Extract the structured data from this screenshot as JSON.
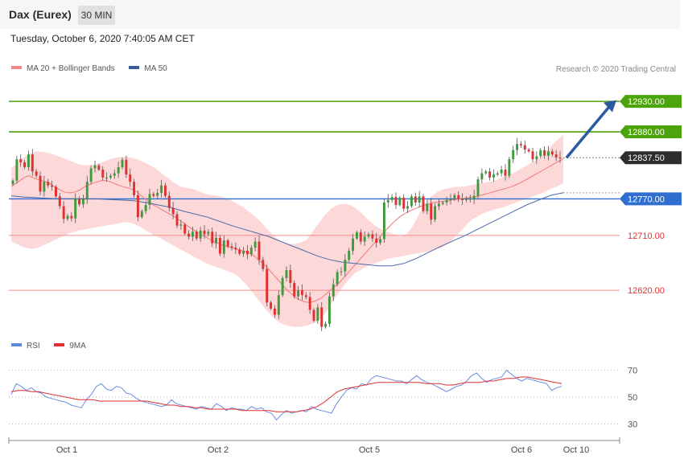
{
  "header": {
    "instrument": "Dax (Eurex)",
    "timeframe": "30 MIN"
  },
  "timestamp": "Tuesday, October 6, 2020 7:40:05 AM CET",
  "legend": {
    "ma20_label": "MA 20 + Bollinger Bands",
    "ma50_label": "MA 50",
    "rsi_label": "RSI",
    "ma9_label": "9MA"
  },
  "credit": "Research © 2020 Trading Central",
  "colors": {
    "resistance": "#4ca40c",
    "support": "#f08a8a",
    "pivot": "#2f6fd0",
    "bullish": "#3d9a3d",
    "bearish": "#e03030",
    "bollinger": "#fdd8d8",
    "ma50": "#4a6aa8",
    "rsi": "#6a8be0",
    "rsi_ma": "#e03030",
    "arrow": "#2c5aa0"
  },
  "chart_data": [
    {
      "type": "candlestick",
      "title": "",
      "ylim": [
        12545,
        12975
      ],
      "x_tick_labels": [
        "Oct 1",
        "Oct 2",
        "Oct 5",
        "Oct 6",
        "Oct 10"
      ],
      "levels": [
        {
          "label": "12930.00",
          "value": 12930,
          "kind": "resistance"
        },
        {
          "label": "12880.00",
          "value": 12880,
          "kind": "resistance"
        },
        {
          "label": "12837.50",
          "value": 12837.5,
          "kind": "last"
        },
        {
          "label": "12770.00",
          "value": 12770,
          "kind": "pivot"
        },
        {
          "label": "12710.00",
          "value": 12710,
          "kind": "support"
        },
        {
          "label": "12620.00",
          "value": 12620,
          "kind": "support"
        }
      ],
      "close": [
        12800,
        12835,
        12830,
        12822,
        12843,
        12815,
        12808,
        12782,
        12798,
        12792,
        12790,
        12774,
        12758,
        12737,
        12742,
        12738,
        12770,
        12761,
        12770,
        12798,
        12820,
        12825,
        12818,
        12805,
        12805,
        12808,
        12812,
        12822,
        12834,
        12810,
        12798,
        12776,
        12740,
        12750,
        12760,
        12778,
        12775,
        12780,
        12792,
        12775,
        12755,
        12745,
        12726,
        12728,
        12713,
        12708,
        12716,
        12705,
        12718,
        12712,
        12716,
        12697,
        12706,
        12680,
        12702,
        12692,
        12690,
        12687,
        12680,
        12685,
        12679,
        12690,
        12700,
        12670,
        12655,
        12600,
        12590,
        12580,
        12612,
        12640,
        12653,
        12632,
        12610,
        12620,
        12612,
        12609,
        12588,
        12570,
        12592,
        12560,
        12565,
        12610,
        12630,
        12650,
        12651,
        12670,
        12685,
        12705,
        12715,
        12700,
        12708,
        12712,
        12705,
        12698,
        12704,
        12764,
        12768,
        12773,
        12760,
        12772,
        12754,
        12758,
        12774,
        12764,
        12774,
        12750,
        12762,
        12736,
        12758,
        12762,
        12764,
        12768,
        12770,
        12776,
        12770,
        12768,
        12770,
        12770,
        12775,
        12802,
        12812,
        12815,
        12805,
        12810,
        12812,
        12818,
        12808,
        12835,
        12850,
        12860,
        12858,
        12851,
        12848,
        12835,
        12840,
        12850,
        12841,
        12848,
        12843,
        12838,
        12837.5
      ],
      "ma20": [
        12790,
        12795,
        12800,
        12805,
        12808,
        12805,
        12802,
        12800,
        12798,
        12795,
        12790,
        12786,
        12782,
        12780,
        12780,
        12782,
        12785,
        12790,
        12793,
        12796,
        12798,
        12800,
        12800,
        12798,
        12795,
        12792,
        12790,
        12788,
        12786,
        12782,
        12776,
        12770,
        12764,
        12760,
        12756,
        12752,
        12748,
        12744,
        12740,
        12735,
        12730,
        12725,
        12720,
        12716,
        12712,
        12708,
        12704,
        12700,
        12697,
        12694,
        12692,
        12690,
        12688,
        12686,
        12684,
        12682,
        12678,
        12672,
        12666,
        12660,
        12652,
        12644,
        12636,
        12628,
        12620,
        12614,
        12608,
        12604,
        12601,
        12600,
        12601,
        12604,
        12608,
        12614,
        12620,
        12626,
        12632,
        12640,
        12648,
        12656,
        12664,
        12672,
        12680,
        12688,
        12696,
        12704,
        12712,
        12720,
        12727,
        12734,
        12740,
        12745,
        12749,
        12752,
        12755,
        12758,
        12760,
        12762,
        12764,
        12765,
        12766,
        12767,
        12768,
        12769,
        12770,
        12771,
        12772,
        12773,
        12774,
        12776,
        12778,
        12780,
        12782,
        12784,
        12786,
        12788,
        12790,
        12793,
        12796,
        12800,
        12804,
        12808,
        12812,
        12816,
        12820,
        12824,
        12828,
        12832,
        12836
      ],
      "bb_upper": [
        12820,
        12830,
        12838,
        12844,
        12848,
        12847,
        12845,
        12842,
        12838,
        12834,
        12830,
        12826,
        12825,
        12826,
        12828,
        12832,
        12836,
        12838,
        12839,
        12838,
        12835,
        12831,
        12826,
        12820,
        12812,
        12804,
        12796,
        12790,
        12788,
        12786,
        12782,
        12778,
        12776,
        12775,
        12772,
        12768,
        12762,
        12756,
        12748,
        12740,
        12730,
        12718,
        12708,
        12700,
        12696,
        12696,
        12698,
        12702,
        12716,
        12730,
        12744,
        12754,
        12760,
        12762,
        12760,
        12754,
        12745,
        12735,
        12726,
        12720,
        12716,
        12712,
        12708,
        12712,
        12725,
        12745,
        12762,
        12774,
        12782,
        12786,
        12788,
        12790,
        12790,
        12792,
        12794,
        12796,
        12798,
        12800,
        12804,
        12808,
        12812,
        12818,
        12824,
        12830,
        12836,
        12846,
        12856,
        12866,
        12876
      ],
      "bb_lower": [
        12700,
        12695,
        12690,
        12688,
        12690,
        12695,
        12700,
        12705,
        12710,
        12715,
        12718,
        12720,
        12722,
        12724,
        12726,
        12728,
        12730,
        12732,
        12730,
        12725,
        12718,
        12712,
        12706,
        12700,
        12694,
        12688,
        12682,
        12676,
        12670,
        12664,
        12660,
        12656,
        12652,
        12648,
        12640,
        12628,
        12614,
        12600,
        12586,
        12574,
        12566,
        12562,
        12560,
        12560,
        12562,
        12566,
        12574,
        12588,
        12606,
        12622,
        12636,
        12648,
        12654,
        12660,
        12664,
        12668,
        12672,
        12674,
        12676,
        12678,
        12680,
        12682,
        12684,
        12688,
        12690,
        12698,
        12708,
        12720,
        12732,
        12740,
        12746,
        12750,
        12753,
        12756,
        12760,
        12764,
        12768,
        12772,
        12776,
        12780,
        12786,
        12790,
        12796
      ],
      "ma50": [
        12775,
        12773,
        12772,
        12771,
        12770,
        12770,
        12770,
        12770,
        12769,
        12768,
        12767,
        12764,
        12760,
        12756,
        12750,
        12745,
        12740,
        12733,
        12726,
        12720,
        12714,
        12708,
        12700,
        12692,
        12684,
        12676,
        12670,
        12666,
        12664,
        12662,
        12660,
        12660,
        12664,
        12672,
        12682,
        12692,
        12701,
        12710,
        12720,
        12730,
        12740,
        12750,
        12760,
        12768,
        12776,
        12780
      ]
    },
    {
      "type": "line",
      "title": "",
      "ylim": [
        20,
        80
      ],
      "y_ticks": [
        70,
        50,
        30
      ],
      "series": [
        {
          "name": "RSI",
          "values": [
            52,
            60,
            58,
            55,
            57,
            54,
            53,
            50,
            49,
            48,
            47,
            46,
            44,
            43,
            42,
            48,
            52,
            58,
            60,
            56,
            55,
            58,
            57,
            53,
            52,
            49,
            47,
            46,
            45,
            44,
            43,
            44,
            48,
            45,
            44,
            43,
            42,
            41,
            43,
            42,
            41,
            45,
            43,
            40,
            42,
            41,
            41,
            40,
            43,
            41,
            42,
            39,
            38,
            33,
            37,
            40,
            38,
            39,
            40,
            39,
            43,
            41,
            40,
            39,
            38,
            45,
            50,
            55,
            57,
            56,
            60,
            59,
            64,
            66,
            65,
            64,
            63,
            62,
            62,
            60,
            63,
            66,
            63,
            61,
            60,
            58,
            56,
            54,
            56,
            58,
            59,
            62,
            66,
            68,
            64,
            61,
            63,
            64,
            65,
            70,
            67,
            64,
            62,
            64,
            63,
            62,
            61,
            60,
            55,
            57,
            58
          ]
        },
        {
          "name": "9MA",
          "values": [
            54,
            55,
            55,
            54,
            54,
            53,
            52,
            51,
            50,
            49,
            48,
            48,
            48,
            47,
            47,
            47,
            47,
            47,
            47,
            47,
            47,
            46,
            45,
            44,
            44,
            43,
            43,
            42,
            42,
            41,
            41,
            41,
            41,
            41,
            40,
            40,
            40,
            40,
            40,
            39,
            39,
            39,
            39,
            40,
            41,
            43,
            46,
            50,
            54,
            56,
            57,
            58,
            59,
            60,
            61,
            61,
            61,
            61,
            61,
            61,
            61,
            60,
            60,
            60,
            59,
            59,
            60,
            61,
            61,
            61,
            62,
            62,
            63,
            64,
            64,
            65,
            65,
            64,
            63,
            62,
            61,
            60
          ]
        }
      ]
    }
  ]
}
